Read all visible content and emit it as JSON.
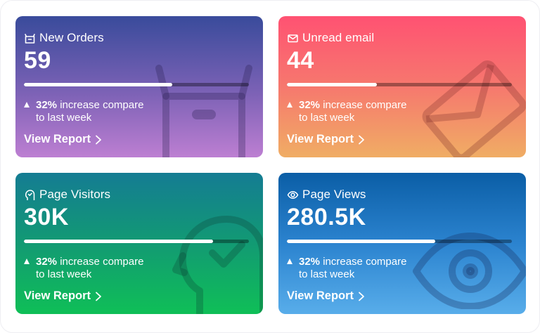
{
  "cards": [
    {
      "title": "New Orders",
      "value": "59",
      "progress": 0.66,
      "stat_percent": "32%",
      "stat_text": "increase compare",
      "stat_text2": "to last week",
      "link": "View Report",
      "icon": "basket-icon",
      "bg_icon": "box-icon"
    },
    {
      "title": "Unread email",
      "value": "44",
      "progress": 0.4,
      "stat_percent": "32%",
      "stat_text": "increase compare",
      "stat_text2": "to last week",
      "link": "View Report",
      "icon": "envelope-icon",
      "bg_icon": "envelope-icon"
    },
    {
      "title": "Page Visitors",
      "value": "30K",
      "progress": 0.84,
      "stat_percent": "32%",
      "stat_text": "increase compare",
      "stat_text2": "to last week",
      "link": "View Report",
      "icon": "head-check-icon",
      "bg_icon": "head-check-icon"
    },
    {
      "title": "Page Views",
      "value": "280.5K",
      "progress": 0.66,
      "stat_percent": "32%",
      "stat_text": "increase compare",
      "stat_text2": "to last week",
      "link": "View Report",
      "icon": "eye-icon",
      "bg_icon": "eye-icon"
    }
  ]
}
